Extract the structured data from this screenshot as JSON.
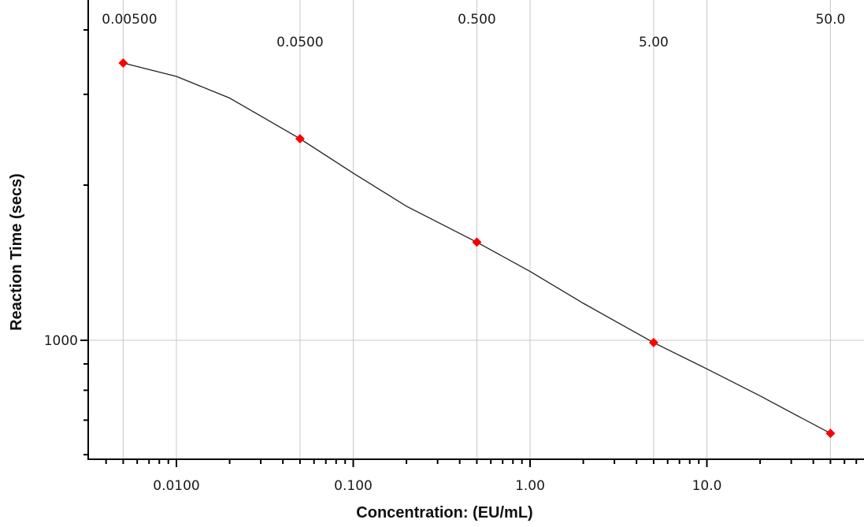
{
  "chart_data": {
    "type": "scatter",
    "xlabel": "Concentration: (EU/mL)",
    "ylabel": "Reaction Time (secs)",
    "x_scale": "log",
    "y_scale": "log",
    "grid": true,
    "legend": "none",
    "x_tick_labels": [
      "0.0100",
      "0.100",
      "1.00",
      "10.0"
    ],
    "x_tick_values": [
      0.01,
      0.1,
      1,
      10
    ],
    "y_tick_labels": [
      "1000"
    ],
    "y_tick_values": [
      1000
    ],
    "standards_labels": [
      "0.00500",
      "0.0500",
      "0.500",
      "5.00",
      "50.0"
    ],
    "series": [
      {
        "marker": "diamond",
        "color": "#ff0000",
        "x": [
          0.005,
          0.05,
          0.5,
          5,
          50
        ],
        "y": [
          3450,
          2460,
          1550,
          990,
          660
        ]
      }
    ],
    "fit_curve": {
      "color": "#222222",
      "x": [
        0.005,
        0.01,
        0.02,
        0.05,
        0.1,
        0.2,
        0.5,
        1,
        2,
        5,
        10,
        20,
        50
      ],
      "y": [
        3450,
        3250,
        2950,
        2460,
        2110,
        1820,
        1550,
        1360,
        1180,
        990,
        880,
        780,
        660
      ]
    }
  }
}
